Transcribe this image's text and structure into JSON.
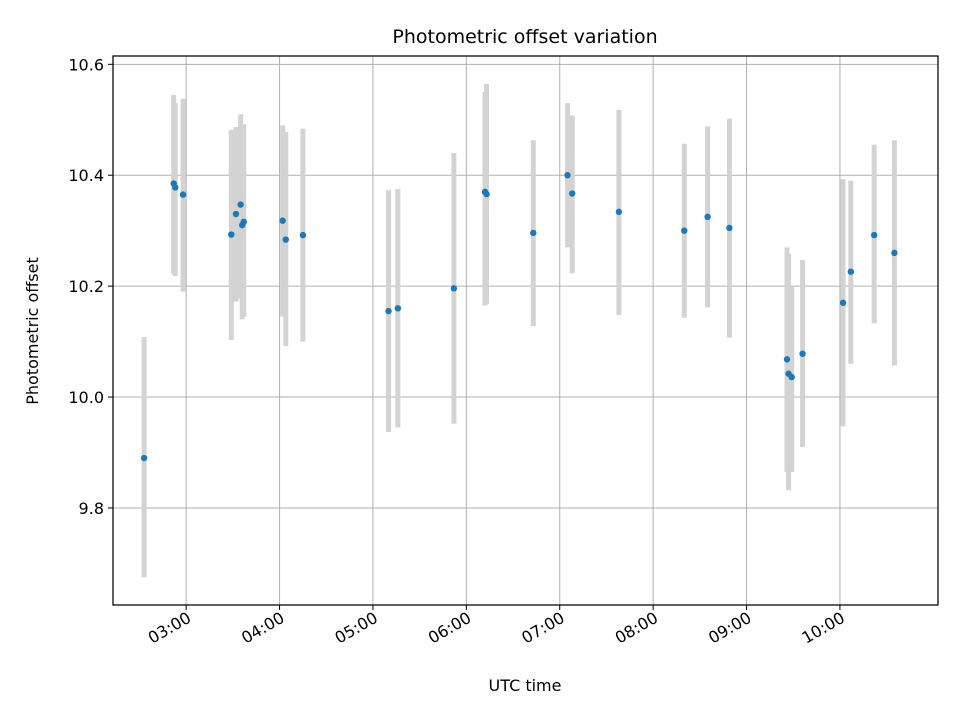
{
  "chart_data": {
    "type": "scatter",
    "title": "Photometric offset variation",
    "xlabel": "UTC time",
    "ylabel": "Photometric offset",
    "x_tick_labels": [
      "03:00",
      "04:00",
      "05:00",
      "06:00",
      "07:00",
      "08:00",
      "09:00",
      "10:00"
    ],
    "y_tick_labels": [
      "9.8",
      "10.0",
      "10.2",
      "10.4",
      "10.6"
    ],
    "y_ticks": [
      9.8,
      10.0,
      10.2,
      10.4,
      10.6
    ],
    "xlim": [
      "02:13",
      "11:03"
    ],
    "ylim": [
      9.625,
      10.615
    ],
    "grid": true,
    "legend": false,
    "colors": {
      "marker": "#1f77b4",
      "errorbar": "#d3d3d3",
      "grid": "#b0b0b0"
    },
    "points": [
      {
        "x": "02:33",
        "y": 9.89,
        "ylow": 9.675,
        "yhigh": 10.108
      },
      {
        "x": "02:52",
        "y": 10.385,
        "ylow": 10.222,
        "yhigh": 10.545
      },
      {
        "x": "02:53",
        "y": 10.378,
        "ylow": 10.218,
        "yhigh": 10.53
      },
      {
        "x": "02:58",
        "y": 10.365,
        "ylow": 10.19,
        "yhigh": 10.538
      },
      {
        "x": "03:29",
        "y": 10.293,
        "ylow": 10.103,
        "yhigh": 10.482
      },
      {
        "x": "03:32",
        "y": 10.33,
        "ylow": 10.172,
        "yhigh": 10.487
      },
      {
        "x": "03:35",
        "y": 10.347,
        "ylow": 10.178,
        "yhigh": 10.51
      },
      {
        "x": "03:36",
        "y": 10.31,
        "ylow": 10.14,
        "yhigh": 10.49
      },
      {
        "x": "03:37",
        "y": 10.316,
        "ylow": 10.145,
        "yhigh": 10.492
      },
      {
        "x": "04:02",
        "y": 10.318,
        "ylow": 10.145,
        "yhigh": 10.49
      },
      {
        "x": "04:04",
        "y": 10.284,
        "ylow": 10.092,
        "yhigh": 10.478
      },
      {
        "x": "04:15",
        "y": 10.292,
        "ylow": 10.1,
        "yhigh": 10.484
      },
      {
        "x": "05:10",
        "y": 10.155,
        "ylow": 9.937,
        "yhigh": 10.373
      },
      {
        "x": "05:16",
        "y": 10.16,
        "ylow": 9.945,
        "yhigh": 10.375
      },
      {
        "x": "05:52",
        "y": 10.196,
        "ylow": 9.952,
        "yhigh": 10.44
      },
      {
        "x": "06:12",
        "y": 10.37,
        "ylow": 10.165,
        "yhigh": 10.55
      },
      {
        "x": "06:13",
        "y": 10.366,
        "ylow": 10.168,
        "yhigh": 10.565
      },
      {
        "x": "06:43",
        "y": 10.296,
        "ylow": 10.128,
        "yhigh": 10.463
      },
      {
        "x": "07:05",
        "y": 10.4,
        "ylow": 10.27,
        "yhigh": 10.53
      },
      {
        "x": "07:08",
        "y": 10.367,
        "ylow": 10.223,
        "yhigh": 10.508
      },
      {
        "x": "07:38",
        "y": 10.334,
        "ylow": 10.148,
        "yhigh": 10.518
      },
      {
        "x": "08:20",
        "y": 10.3,
        "ylow": 10.143,
        "yhigh": 10.457
      },
      {
        "x": "08:35",
        "y": 10.325,
        "ylow": 10.162,
        "yhigh": 10.488
      },
      {
        "x": "08:49",
        "y": 10.305,
        "ylow": 10.107,
        "yhigh": 10.502
      },
      {
        "x": "09:26",
        "y": 10.068,
        "ylow": 9.865,
        "yhigh": 10.27
      },
      {
        "x": "09:27",
        "y": 10.042,
        "ylow": 9.832,
        "yhigh": 10.258
      },
      {
        "x": "09:29",
        "y": 10.036,
        "ylow": 9.865,
        "yhigh": 10.2
      },
      {
        "x": "09:36",
        "y": 10.078,
        "ylow": 9.91,
        "yhigh": 10.247
      },
      {
        "x": "10:02",
        "y": 10.17,
        "ylow": 9.947,
        "yhigh": 10.393
      },
      {
        "x": "10:07",
        "y": 10.226,
        "ylow": 10.06,
        "yhigh": 10.39
      },
      {
        "x": "10:22",
        "y": 10.292,
        "ylow": 10.133,
        "yhigh": 10.455
      },
      {
        "x": "10:35",
        "y": 10.26,
        "ylow": 10.057,
        "yhigh": 10.463
      }
    ]
  }
}
